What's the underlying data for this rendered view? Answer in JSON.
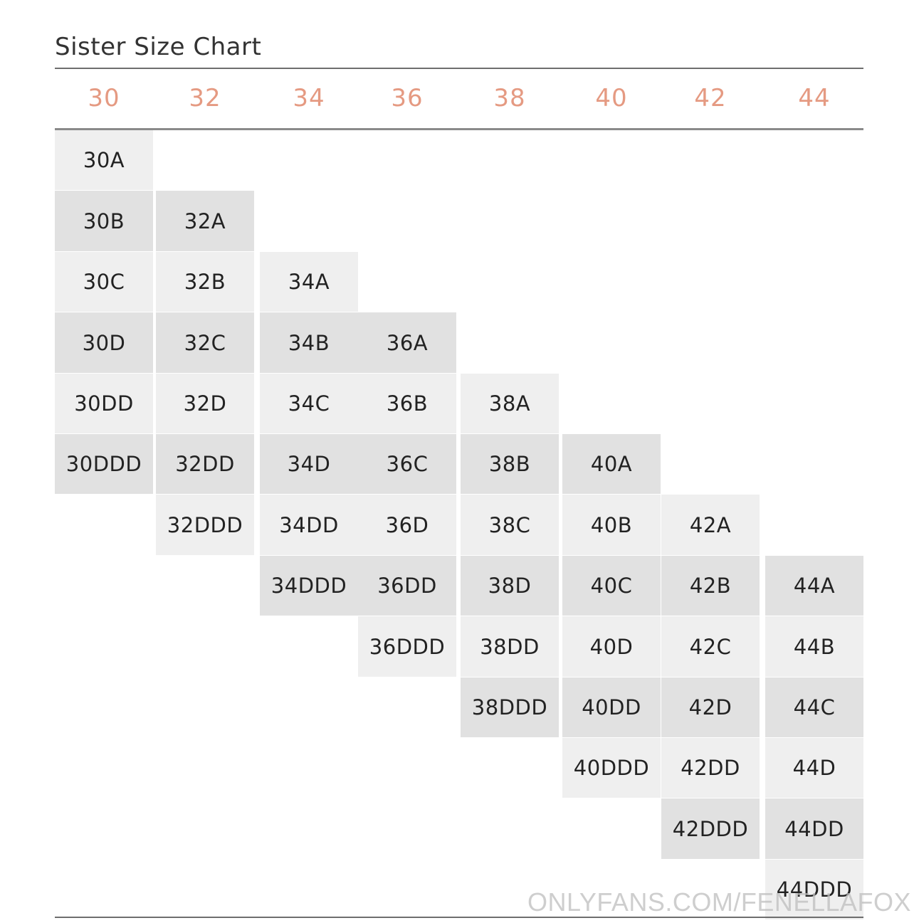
{
  "title": "Sister Size Chart",
  "header_color": "#e59a82",
  "shade_light": "#efefef",
  "shade_dark": "#e1e1e1",
  "band_sizes": [
    "30",
    "32",
    "34",
    "36",
    "38",
    "40",
    "42",
    "44"
  ],
  "columns": [
    [
      "30A",
      "30B",
      "30C",
      "30D",
      "30DD",
      "30DDD"
    ],
    [
      "32A",
      "32B",
      "32C",
      "32D",
      "32DD",
      "32DDD"
    ],
    [
      "34A",
      "34B",
      "34C",
      "34D",
      "34DD",
      "34DDD"
    ],
    [
      "36A",
      "36B",
      "36C",
      "36D",
      "36DD",
      "36DDD"
    ],
    [
      "38A",
      "38B",
      "38C",
      "38D",
      "38DD",
      "38DDD"
    ],
    [
      "40A",
      "40B",
      "40C",
      "40D",
      "40DD",
      "40DDD"
    ],
    [
      "42A",
      "42B",
      "42C",
      "42D",
      "42DD",
      "42DDD"
    ],
    [
      "44A",
      "44B",
      "44C",
      "44D",
      "44DD",
      "44DDD"
    ]
  ],
  "watermark": "ONLYFANS.COM/FENELLAFOX"
}
